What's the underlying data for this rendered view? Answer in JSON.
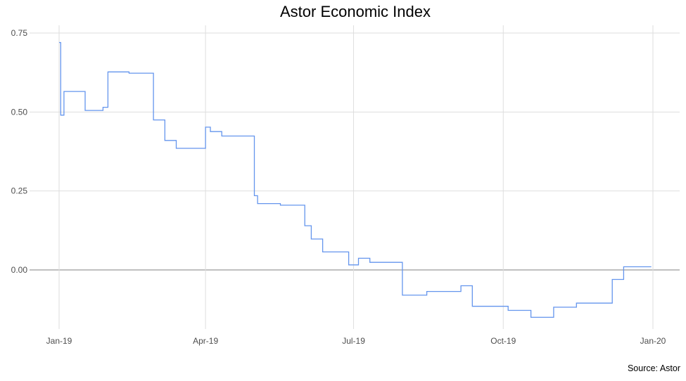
{
  "chart_data": {
    "type": "line",
    "title": "Astor Economic Index",
    "caption": "Source: Astor",
    "xlabel": "",
    "ylabel": "",
    "x_range": [
      "2019-01-01",
      "2020-01-01"
    ],
    "ylim": [
      -0.2,
      0.75
    ],
    "y_ticks": [
      {
        "value": 0.75,
        "label": "0.75"
      },
      {
        "value": 0.5,
        "label": "0.50"
      },
      {
        "value": 0.25,
        "label": "0.25"
      },
      {
        "value": 0.0,
        "label": "0.00"
      }
    ],
    "x_ticks": [
      {
        "date": "2019-01-01",
        "label": "Jan-19"
      },
      {
        "date": "2019-04-01",
        "label": "Apr-19"
      },
      {
        "date": "2019-07-01",
        "label": "Jul-19"
      },
      {
        "date": "2019-10-01",
        "label": "Oct-19"
      },
      {
        "date": "2020-01-01",
        "label": "Jan-20"
      }
    ],
    "grid": true,
    "zero_line": true,
    "line_color": "#6495ED",
    "series": [
      {
        "step": true,
        "points": [
          [
            "2019-01-01",
            0.72
          ],
          [
            "2019-01-02",
            0.49
          ],
          [
            "2019-01-04",
            0.565
          ],
          [
            "2019-01-17",
            0.505
          ],
          [
            "2019-01-28",
            0.515
          ],
          [
            "2019-01-31",
            0.627
          ],
          [
            "2019-02-13",
            0.623
          ],
          [
            "2019-02-28",
            0.475
          ],
          [
            "2019-03-07",
            0.41
          ],
          [
            "2019-03-14",
            0.385
          ],
          [
            "2019-04-01",
            0.452
          ],
          [
            "2019-04-04",
            0.438
          ],
          [
            "2019-04-11",
            0.424
          ],
          [
            "2019-05-01",
            0.235
          ],
          [
            "2019-05-03",
            0.21
          ],
          [
            "2019-05-17",
            0.205
          ],
          [
            "2019-06-01",
            0.14
          ],
          [
            "2019-06-05",
            0.098
          ],
          [
            "2019-06-12",
            0.057
          ],
          [
            "2019-06-28",
            0.016
          ],
          [
            "2019-07-04",
            0.037
          ],
          [
            "2019-07-11",
            0.024
          ],
          [
            "2019-07-31",
            -0.08
          ],
          [
            "2019-08-15",
            -0.068
          ],
          [
            "2019-09-05",
            -0.05
          ],
          [
            "2019-09-12",
            -0.115
          ],
          [
            "2019-10-04",
            -0.128
          ],
          [
            "2019-10-18",
            -0.15
          ],
          [
            "2019-11-01",
            -0.118
          ],
          [
            "2019-11-15",
            -0.105
          ],
          [
            "2019-12-07",
            -0.03
          ],
          [
            "2019-12-14",
            0.01
          ],
          [
            "2019-12-31",
            0.01
          ]
        ]
      }
    ]
  }
}
